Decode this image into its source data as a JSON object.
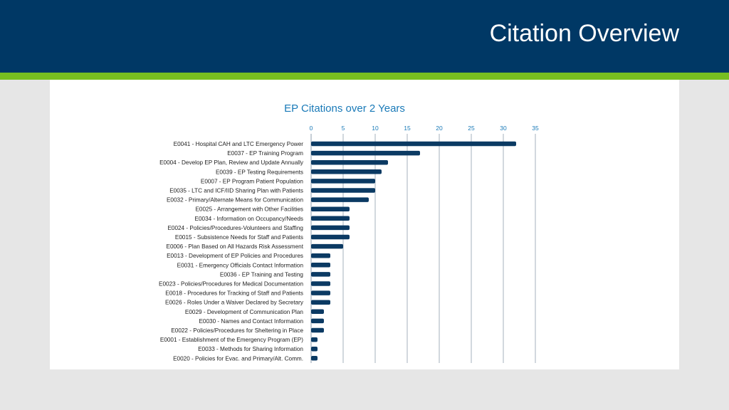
{
  "slide": {
    "title": "Citation Overview"
  },
  "colors": {
    "header_bg": "#003865",
    "accent_stripe": "#78be20",
    "bar": "#0b3a63",
    "title_text": "#1a7ab8",
    "tick_text": "#1a7ab8",
    "gridline": "#b4bec8"
  },
  "chart_data": {
    "type": "bar",
    "orientation": "horizontal",
    "title": "EP Citations over 2 Years",
    "xlabel": "",
    "ylabel": "",
    "xlim": [
      0,
      35
    ],
    "xticks": [
      0,
      5,
      10,
      15,
      20,
      25,
      30,
      35
    ],
    "xaxis_position": "top",
    "grid": true,
    "categories": [
      "E0041 - Hospital CAH and LTC Emergency Power",
      "E0037  - EP Training Program",
      "E0004 - Develop EP Plan, Review and Update Annually",
      "E0039 - EP Testing Requirements",
      "E0007 - EP Program Patient Population",
      "E0035 - LTC and ICF/IID Sharing Plan with Patients",
      "E0032 - Primary/Alternate Means for Communication",
      "E0025 - Arrangement with Other Facilities",
      "E0034 - Information on Occupancy/Needs",
      "E0024 - Policies/Procedures-Volunteers and Staffing",
      "E0015 - Subsistence Needs for Staff and Patients",
      "E0006 - Plan Based on All Hazards Risk Assessment",
      "E0013 - Development of EP Policies and Procedures",
      "E0031 - Emergency Officials Contact Information",
      "E0036 - EP Training and Testing",
      "E0023 - Policies/Procedures for Medical Documentation",
      "E0018 - Procedures for Tracking of Staff and Patients",
      "E0026 - Roles Under a Waiver Declared by Secretary",
      "E0029 - Development of Communication Plan",
      "E0030 - Names and Contact Information",
      "E0022 - Policies/Procedures for Sheltering in Place",
      "E0001 - Establishment of the Emergency Program (EP)",
      "E0033 - Methods for Sharing Information",
      "E0020 - Policies for Evac. and Primary/Alt. Comm."
    ],
    "values": [
      32,
      17,
      12,
      11,
      10,
      10,
      9,
      6,
      6,
      6,
      6,
      5,
      3,
      3,
      3,
      3,
      3,
      3,
      2,
      2,
      2,
      1,
      1,
      1
    ]
  }
}
